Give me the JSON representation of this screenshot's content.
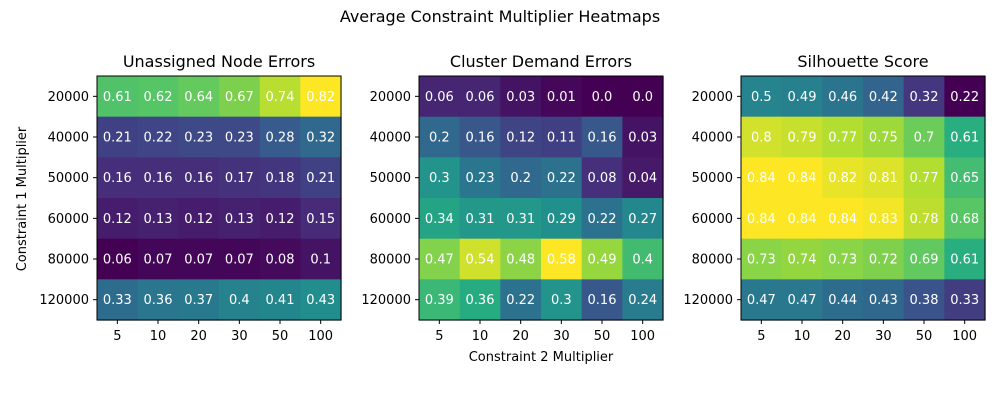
{
  "figure_title": "Average Constraint Multiplier Heatmaps",
  "xlabel": "Constraint 2 Multiplier",
  "ylabel": "Constraint 1 Multiplier",
  "chart_data": [
    {
      "type": "heatmap",
      "title": "Unassigned Node Errors",
      "x_categories": [
        "5",
        "10",
        "20",
        "30",
        "50",
        "100"
      ],
      "y_categories": [
        "20000",
        "40000",
        "50000",
        "60000",
        "80000",
        "120000"
      ],
      "values": [
        [
          0.61,
          0.62,
          0.64,
          0.67,
          0.74,
          0.82
        ],
        [
          0.21,
          0.22,
          0.23,
          0.23,
          0.28,
          0.32
        ],
        [
          0.16,
          0.16,
          0.16,
          0.17,
          0.18,
          0.21
        ],
        [
          0.12,
          0.13,
          0.12,
          0.13,
          0.12,
          0.15
        ],
        [
          0.06,
          0.07,
          0.07,
          0.07,
          0.08,
          0.1
        ],
        [
          0.33,
          0.36,
          0.37,
          0.4,
          0.41,
          0.43
        ]
      ],
      "labels": [
        [
          "0.61",
          "0.62",
          "0.64",
          "0.67",
          "0.74",
          "0.82"
        ],
        [
          "0.21",
          "0.22",
          "0.23",
          "0.23",
          "0.28",
          "0.32"
        ],
        [
          "0.16",
          "0.16",
          "0.16",
          "0.17",
          "0.18",
          "0.21"
        ],
        [
          "0.12",
          "0.13",
          "0.12",
          "0.13",
          "0.12",
          "0.15"
        ],
        [
          "0.06",
          "0.07",
          "0.07",
          "0.07",
          "0.08",
          "0.1"
        ],
        [
          "0.33",
          "0.36",
          "0.37",
          "0.4",
          "0.41",
          "0.43"
        ]
      ],
      "colormap": "viridis"
    },
    {
      "type": "heatmap",
      "title": "Cluster Demand Errors",
      "x_categories": [
        "5",
        "10",
        "20",
        "30",
        "50",
        "100"
      ],
      "y_categories": [
        "20000",
        "40000",
        "50000",
        "60000",
        "80000",
        "120000"
      ],
      "values": [
        [
          0.06,
          0.06,
          0.03,
          0.01,
          0.0,
          0.0
        ],
        [
          0.2,
          0.16,
          0.12,
          0.11,
          0.16,
          0.03
        ],
        [
          0.3,
          0.23,
          0.2,
          0.22,
          0.08,
          0.04
        ],
        [
          0.34,
          0.31,
          0.31,
          0.29,
          0.22,
          0.27
        ],
        [
          0.47,
          0.54,
          0.48,
          0.58,
          0.49,
          0.4
        ],
        [
          0.39,
          0.36,
          0.22,
          0.3,
          0.16,
          0.24
        ]
      ],
      "labels": [
        [
          "0.06",
          "0.06",
          "0.03",
          "0.01",
          "0.0",
          "0.0"
        ],
        [
          "0.2",
          "0.16",
          "0.12",
          "0.11",
          "0.16",
          "0.03"
        ],
        [
          "0.3",
          "0.23",
          "0.2",
          "0.22",
          "0.08",
          "0.04"
        ],
        [
          "0.34",
          "0.31",
          "0.31",
          "0.29",
          "0.22",
          "0.27"
        ],
        [
          "0.47",
          "0.54",
          "0.48",
          "0.58",
          "0.49",
          "0.4"
        ],
        [
          "0.39",
          "0.36",
          "0.22",
          "0.3",
          "0.16",
          "0.24"
        ]
      ],
      "colormap": "viridis"
    },
    {
      "type": "heatmap",
      "title": "Silhouette Score",
      "x_categories": [
        "5",
        "10",
        "20",
        "30",
        "50",
        "100"
      ],
      "y_categories": [
        "20000",
        "40000",
        "50000",
        "60000",
        "80000",
        "120000"
      ],
      "values": [
        [
          0.5,
          0.49,
          0.46,
          0.42,
          0.32,
          0.22
        ],
        [
          0.8,
          0.79,
          0.77,
          0.75,
          0.7,
          0.61
        ],
        [
          0.84,
          0.84,
          0.82,
          0.81,
          0.77,
          0.65
        ],
        [
          0.84,
          0.84,
          0.84,
          0.83,
          0.78,
          0.68
        ],
        [
          0.73,
          0.74,
          0.73,
          0.72,
          0.69,
          0.61
        ],
        [
          0.47,
          0.47,
          0.44,
          0.43,
          0.38,
          0.33
        ]
      ],
      "labels": [
        [
          "0.5",
          "0.49",
          "0.46",
          "0.42",
          "0.32",
          "0.22"
        ],
        [
          "0.8",
          "0.79",
          "0.77",
          "0.75",
          "0.7",
          "0.61"
        ],
        [
          "0.84",
          "0.84",
          "0.82",
          "0.81",
          "0.77",
          "0.65"
        ],
        [
          "0.84",
          "0.84",
          "0.84",
          "0.83",
          "0.78",
          "0.68"
        ],
        [
          "0.73",
          "0.74",
          "0.73",
          "0.72",
          "0.69",
          "0.61"
        ],
        [
          "0.47",
          "0.47",
          "0.44",
          "0.43",
          "0.38",
          "0.33"
        ]
      ],
      "colormap": "viridis"
    }
  ]
}
